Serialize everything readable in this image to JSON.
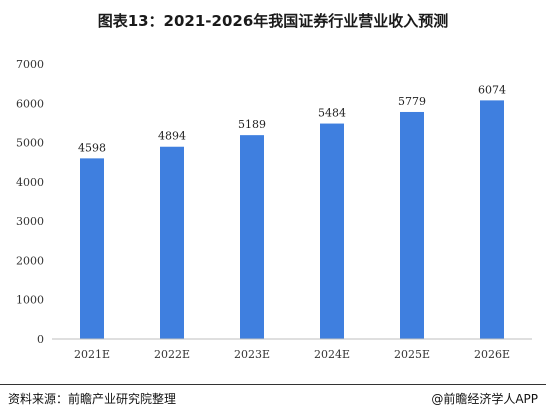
{
  "chart_data": {
    "type": "bar",
    "title": "图表13：2021-2026年我国证券行业营业收入预测",
    "categories": [
      "2021E",
      "2022E",
      "2023E",
      "2024E",
      "2025E",
      "2026E"
    ],
    "values": [
      4598,
      4894,
      5189,
      5484,
      5779,
      6074
    ],
    "ylim": [
      0,
      7000
    ],
    "yticks": [
      0,
      1000,
      2000,
      3000,
      4000,
      5000,
      6000,
      7000
    ],
    "bar_color": "#3f7fdf",
    "grid": false,
    "legend": "none"
  },
  "footer": {
    "source": "资料来源：前瞻产业研究院整理",
    "brand": "@前瞻经济学人APP"
  }
}
